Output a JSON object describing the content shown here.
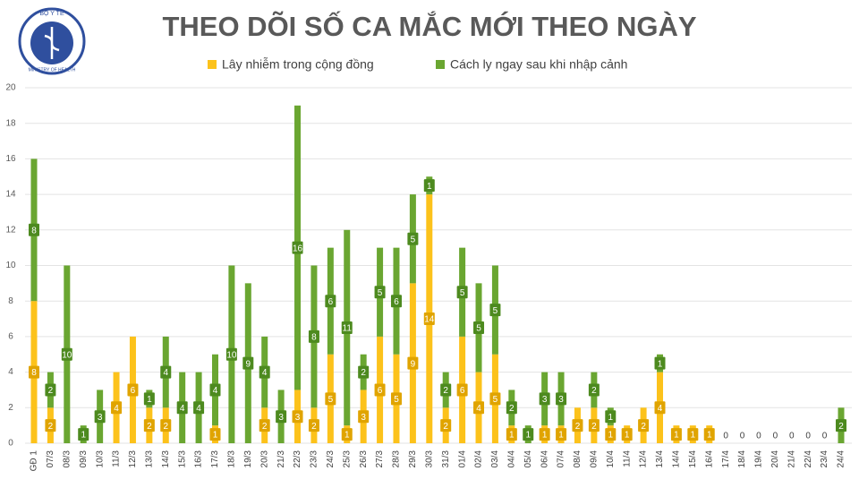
{
  "chart_data": {
    "type": "stacked-bar",
    "title": "THEO DÕI SỐ CA MẮC MỚI THEO NGÀY",
    "logo": {
      "top": "BỘ Y TẾ",
      "bottom": "MINISTRY OF HEALTH"
    },
    "categories": [
      "GĐ 1",
      "07/3",
      "08/3",
      "09/3",
      "10/3",
      "11/3",
      "12/3",
      "13/3",
      "14/3",
      "15/3",
      "16/3",
      "17/3",
      "18/3",
      "19/3",
      "20/3",
      "21/3",
      "22/3",
      "23/3",
      "24/3",
      "25/3",
      "26/3",
      "27/3",
      "28/3",
      "29/3",
      "30/3",
      "31/3",
      "01/4",
      "02/4",
      "03/4",
      "04/4",
      "05/4",
      "06/4",
      "07/4",
      "08/4",
      "09/4",
      "10/4",
      "11/4",
      "12/4",
      "13/4",
      "14/4",
      "15/4",
      "16/4",
      "17/4",
      "18/4",
      "19/4",
      "20/4",
      "21/4",
      "22/4",
      "23/4",
      "24/4"
    ],
    "series": [
      {
        "name": "Lây nhiễm trong cộng đồng",
        "color": "#fcc21b",
        "values": [
          8,
          2,
          0,
          0,
          0,
          4,
          6,
          2,
          2,
          0,
          0,
          1,
          0,
          0,
          2,
          0,
          3,
          2,
          5,
          1,
          3,
          6,
          5,
          9,
          14,
          2,
          6,
          4,
          5,
          1,
          0,
          1,
          1,
          2,
          2,
          1,
          1,
          2,
          4,
          1,
          1,
          1,
          0,
          0,
          0,
          0,
          0,
          0,
          0,
          0
        ]
      },
      {
        "name": "Cách ly ngay sau khi nhập cảnh",
        "color": "#6aa631",
        "values": [
          8,
          2,
          10,
          1,
          3,
          0,
          0,
          1,
          4,
          4,
          4,
          4,
          10,
          9,
          4,
          3,
          16,
          8,
          6,
          11,
          2,
          5,
          6,
          5,
          1,
          2,
          5,
          5,
          5,
          2,
          1,
          3,
          3,
          0,
          2,
          1,
          0,
          0,
          1,
          0,
          0,
          0,
          0,
          0,
          0,
          0,
          0,
          0,
          0,
          2
        ]
      }
    ],
    "ylim": [
      0,
      20
    ],
    "yticks": [
      0,
      2,
      4,
      6,
      8,
      10,
      12,
      14,
      16,
      18,
      20
    ],
    "grid": true
  }
}
